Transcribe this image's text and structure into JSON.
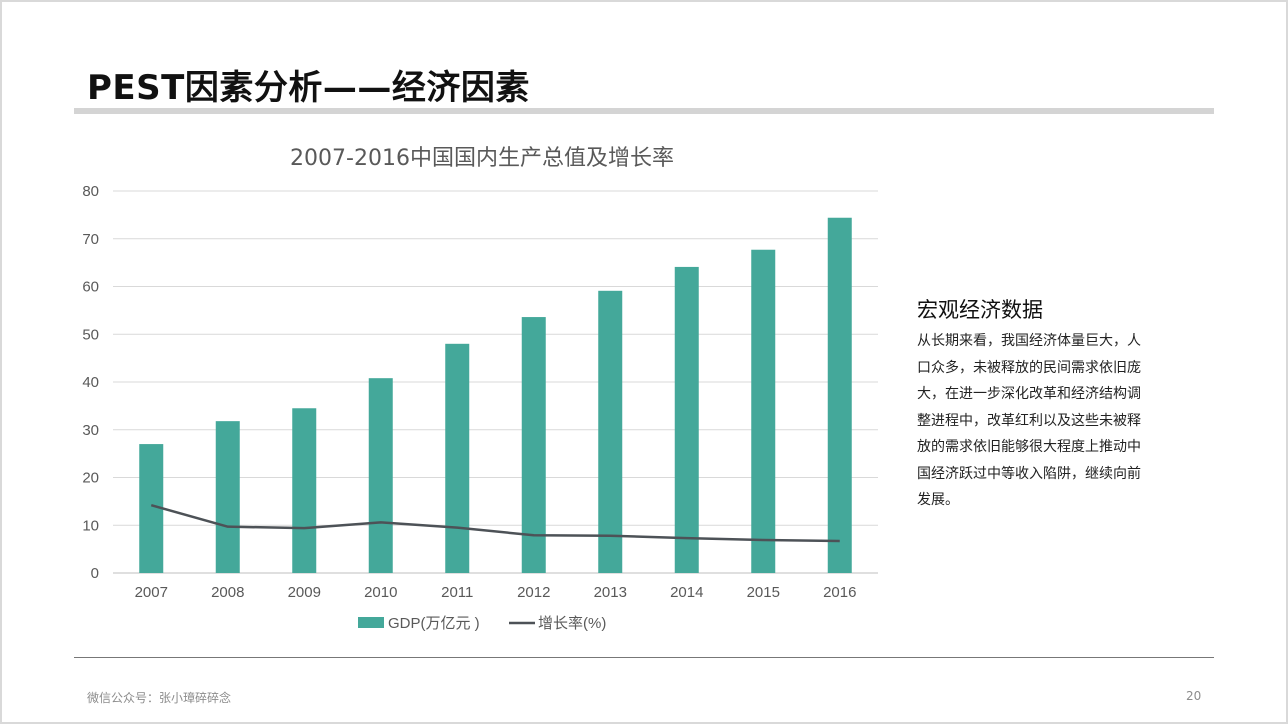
{
  "slide": {
    "title": "PEST因素分析——经济因素",
    "side_heading": "宏观经济数据",
    "side_body": "从长期来看，我国经济体量巨大，人口众多，未被释放的民间需求依旧庞大，在进一步深化改革和经济结构调整进程中，改革红利以及这些未被释放的需求依旧能够很大程度上推动中国经济跃过中等收入陷阱，继续向前发展。",
    "footer_left": "微信公众号：张小璋碎碎念",
    "page_number": "20"
  },
  "colors": {
    "bar": "#44a89a",
    "line": "#4d5257",
    "grid": "#d9d9d9",
    "title_rule": "#d4d4d4"
  },
  "chart_data": {
    "type": "bar",
    "title": "2007-2016中国国内生产总值及增长率",
    "categories": [
      "2007",
      "2008",
      "2009",
      "2010",
      "2011",
      "2012",
      "2013",
      "2014",
      "2015",
      "2016"
    ],
    "series": [
      {
        "name": "GDP(万亿元 )",
        "type": "bar",
        "values": [
          27.0,
          31.8,
          34.5,
          40.8,
          48.0,
          53.6,
          59.1,
          64.1,
          67.7,
          74.4
        ]
      },
      {
        "name": "增长率(%)",
        "type": "line",
        "values": [
          14.2,
          9.7,
          9.4,
          10.6,
          9.5,
          7.9,
          7.8,
          7.3,
          6.9,
          6.7
        ]
      }
    ],
    "ylim": [
      0,
      80
    ],
    "yticks": [
      0,
      10,
      20,
      30,
      40,
      50,
      60,
      70,
      80
    ],
    "grid": true,
    "legend": "bottom",
    "xlabel": "",
    "ylabel": ""
  }
}
